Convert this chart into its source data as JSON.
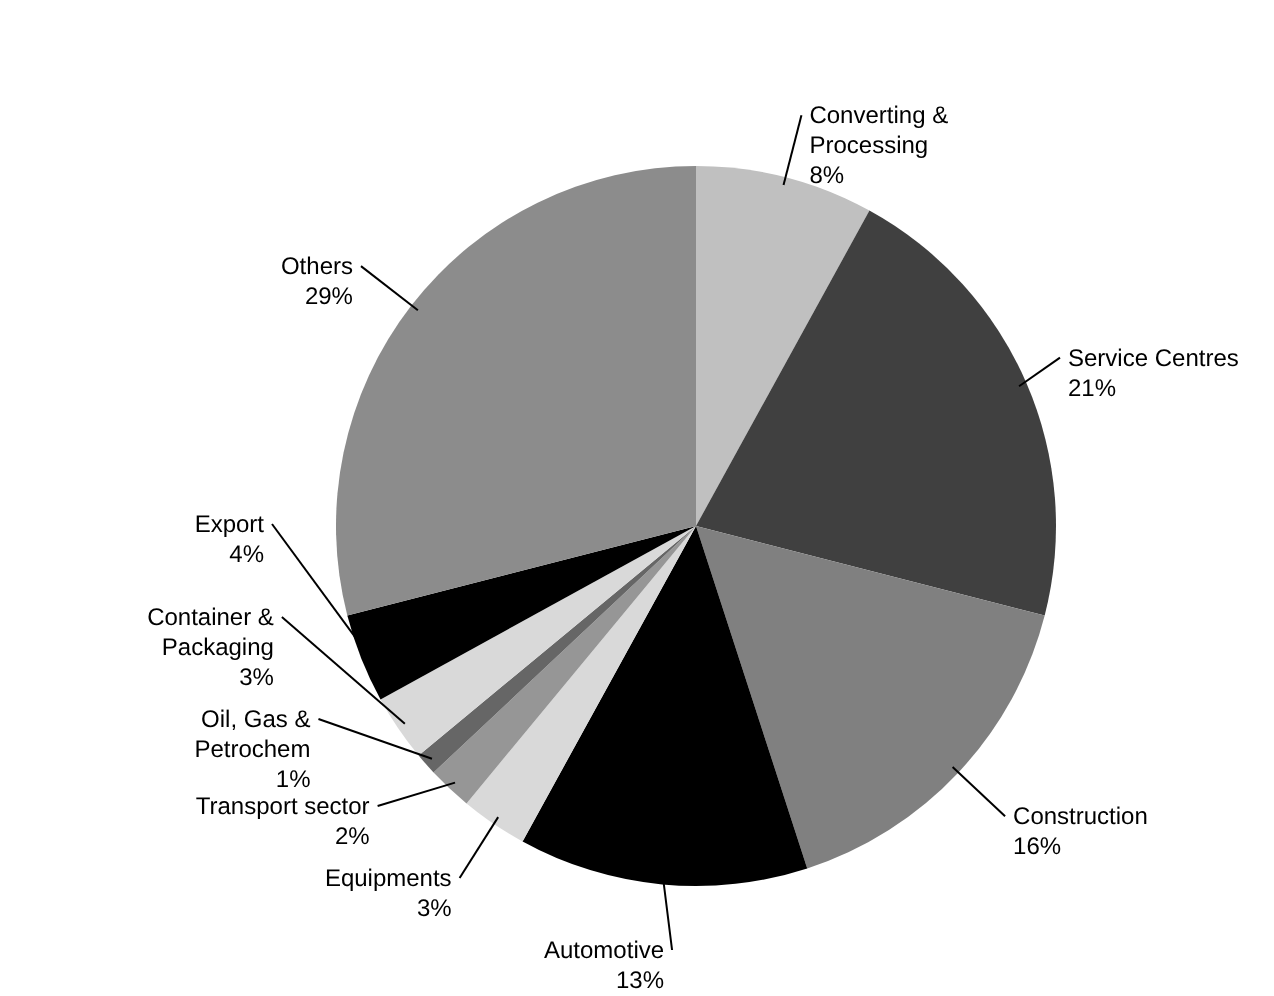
{
  "chart_data": {
    "type": "pie",
    "categories": [
      "Converting & Processing",
      "Service Centres",
      "Construction",
      "Automotive",
      "Equipments",
      "Transport sector",
      "Oil, Gas & Petrochem",
      "Container & Packaging",
      "Export",
      "Others"
    ],
    "values": [
      8,
      21,
      16,
      13,
      3,
      2,
      1,
      3,
      4,
      29
    ],
    "value_labels": [
      "8%",
      "21%",
      "16%",
      "13%",
      "3%",
      "2%",
      "1%",
      "3%",
      "4%",
      "29%"
    ],
    "colors": [
      "#c0c0c0",
      "#404040",
      "#808080",
      "#000000",
      "#d9d9d9",
      "#969696",
      "#666666",
      "#d9d9d9",
      "#000000",
      "#8c8c8c"
    ]
  }
}
